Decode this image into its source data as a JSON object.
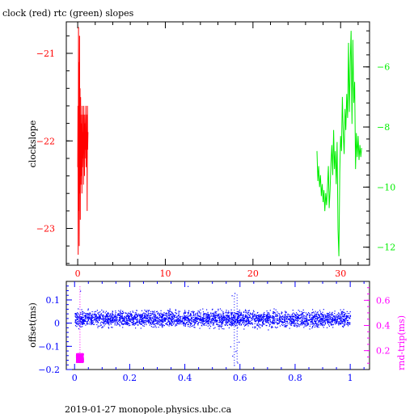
{
  "title": "clock (red) rtc (green) slopes",
  "footer": "2019-01-27  monopole.physics.ubc.ca",
  "colors": {
    "red": "#ff0000",
    "green": "#00ee00",
    "blue": "#0000ff",
    "magenta": "#ff00ff",
    "black": "#000000"
  },
  "chart_data": [
    {
      "type": "line",
      "title": "clock (red) rtc (green) slopes",
      "ylabel": "clockslope",
      "xlim": [
        -1.3,
        33.3
      ],
      "x_ticks": [
        0,
        10,
        20,
        30
      ],
      "left_axis": {
        "ylim": [
          -23.42,
          -20.64
        ],
        "ticks": [
          -21,
          -22,
          -23
        ]
      },
      "right_axis": {
        "ylim": [
          -12.6,
          -4.5
        ],
        "ticks": [
          -6,
          -8,
          -10,
          -12
        ]
      },
      "series": [
        {
          "color": "red",
          "axis": "left",
          "x": [
            0,
            0.03,
            0.06,
            0.09,
            0.12,
            0.15,
            0.18,
            0.21,
            0.24,
            0.27,
            0.3,
            0.33,
            0.36,
            0.39,
            0.42,
            0.45,
            0.48,
            0.51,
            0.54,
            0.57,
            0.6,
            0.63,
            0.66,
            0.69,
            0.72,
            0.75,
            0.78,
            0.81,
            0.84,
            0.87,
            0.9,
            0.93,
            0.96,
            0.99,
            1.02,
            1.05,
            1.08,
            1.11,
            1.14,
            1.17
          ],
          "y": [
            -22.3,
            -21.6,
            -23.3,
            -20.7,
            -22.8,
            -21.1,
            -23.2,
            -20.8,
            -22.6,
            -21.4,
            -22.9,
            -21.5,
            -22.5,
            -21.7,
            -22.4,
            -21.8,
            -22.6,
            -21.6,
            -22.3,
            -21.9,
            -22.2,
            -21.7,
            -22.5,
            -21.6,
            -22.1,
            -21.8,
            -22.4,
            -21.7,
            -22.2,
            -21.8,
            -22.1,
            -21.6,
            -22.3,
            -21.9,
            -22.2,
            -21.7,
            -22.8,
            -21.6,
            -22.1,
            -21.9
          ]
        },
        {
          "color": "green",
          "axis": "right",
          "x": [
            27.3,
            27.4,
            27.5,
            27.6,
            27.7,
            27.8,
            27.9,
            28,
            28.1,
            28.2,
            28.3,
            28.4,
            28.5,
            28.6,
            28.7,
            28.8,
            28.9,
            29,
            29.1,
            29.2,
            29.3,
            29.4,
            29.5,
            29.6,
            29.7,
            29.8,
            29.9,
            30,
            30.1,
            30.2,
            30.3,
            30.4,
            30.5,
            30.6,
            30.7,
            30.8,
            30.9,
            31,
            31.1,
            31.2,
            31.3,
            31.4,
            31.5,
            31.6,
            31.7,
            31.8,
            31.9,
            32,
            32.1,
            32.2,
            32.3,
            32.4
          ],
          "y": [
            -8.8,
            -9.8,
            -9.3,
            -10.0,
            -9.6,
            -10.3,
            -9.9,
            -10.5,
            -10.1,
            -10.8,
            -10.2,
            -10.6,
            -10.0,
            -9.3,
            -10.7,
            -10.1,
            -9.2,
            -8.6,
            -9.6,
            -8.1,
            -9.4,
            -8.8,
            -9.9,
            -8.5,
            -11.4,
            -12.3,
            -9.5,
            -8.3,
            -8.8,
            -7.0,
            -8.2,
            -8.9,
            -7.4,
            -8.1,
            -6.9,
            -7.7,
            -5.2,
            -7.5,
            -5.8,
            -4.8,
            -7.9,
            -5.1,
            -7.2,
            -6.5,
            -9.4,
            -8.2,
            -9.0,
            -8.3,
            -9.1,
            -8.6,
            -9.0,
            -8.7
          ]
        }
      ]
    },
    {
      "type": "scatter",
      "ylabel": "offset(ms)",
      "right_ylabel": "rnd-trip(ms)",
      "xlim": [
        -0.03,
        1.07
      ],
      "x_ticks": [
        0,
        0.2,
        0.4,
        0.6,
        0.8,
        1
      ],
      "left_axis": {
        "ylim": [
          -0.2,
          0.18
        ],
        "ticks": [
          0.1,
          0,
          -0.1,
          -0.2
        ]
      },
      "right_axis": {
        "ylim": [
          0.05,
          0.75
        ],
        "ticks": [
          0.6,
          0.4,
          0.2
        ]
      },
      "offset_band": {
        "color": "blue",
        "x_range": [
          0,
          1
        ],
        "center": 0.02,
        "spread": 0.05
      },
      "roundtrip_cluster": {
        "color": "magenta",
        "x_range": [
          0.005,
          0.03
        ],
        "y_range": [
          0.11,
          0.18
        ]
      },
      "outliers": [
        {
          "x": 0.572,
          "y": -0.14
        },
        {
          "x": 0.578,
          "y": -0.18
        },
        {
          "x": 0.584,
          "y": -0.12
        },
        {
          "x": 0.59,
          "y": -0.17
        },
        {
          "x": 0.565,
          "y": -0.1
        },
        {
          "x": 0.595,
          "y": -0.08
        },
        {
          "x": 0.57,
          "y": 0.12
        },
        {
          "x": 0.58,
          "y": 0.13
        },
        {
          "x": 0.02,
          "y": 0.14
        },
        {
          "x": 0.41,
          "y": 0.16
        }
      ]
    }
  ]
}
